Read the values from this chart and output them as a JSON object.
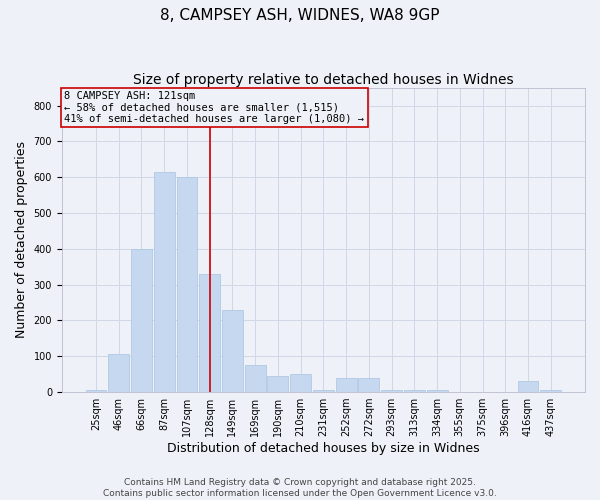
{
  "title1": "8, CAMPSEY ASH, WIDNES, WA8 9GP",
  "title2": "Size of property relative to detached houses in Widnes",
  "xlabel": "Distribution of detached houses by size in Widnes",
  "ylabel": "Number of detached properties",
  "categories": [
    "25sqm",
    "46sqm",
    "66sqm",
    "87sqm",
    "107sqm",
    "128sqm",
    "149sqm",
    "169sqm",
    "190sqm",
    "210sqm",
    "231sqm",
    "252sqm",
    "272sqm",
    "293sqm",
    "313sqm",
    "334sqm",
    "355sqm",
    "375sqm",
    "396sqm",
    "416sqm",
    "437sqm"
  ],
  "values": [
    5,
    105,
    400,
    615,
    600,
    330,
    230,
    75,
    45,
    50,
    5,
    40,
    40,
    5,
    5,
    5,
    0,
    0,
    0,
    30,
    5
  ],
  "bar_color": "#c5d8f0",
  "bar_edge_color": "#a8c4e0",
  "grid_color": "#d0d8e8",
  "bg_color": "#eef2f8",
  "vline_x_index": 5,
  "vline_color": "#cc0000",
  "annotation_text": "8 CAMPSEY ASH: 121sqm\n← 58% of detached houses are smaller (1,515)\n41% of semi-detached houses are larger (1,080) →",
  "annotation_box_color": "#cc0000",
  "ylim": [
    0,
    850
  ],
  "yticks": [
    0,
    100,
    200,
    300,
    400,
    500,
    600,
    700,
    800
  ],
  "footnote1": "Contains HM Land Registry data © Crown copyright and database right 2025.",
  "footnote2": "Contains public sector information licensed under the Open Government Licence v3.0.",
  "title1_fontsize": 11,
  "title2_fontsize": 10,
  "axis_label_fontsize": 9,
  "tick_fontsize": 7,
  "annotation_fontsize": 7.5,
  "footnote_fontsize": 6.5
}
